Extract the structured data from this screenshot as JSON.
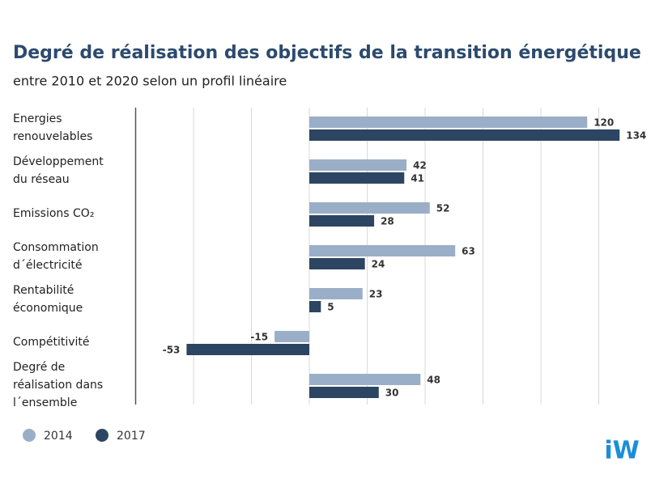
{
  "chart_data": {
    "type": "barh",
    "title": "Degré de réalisation des objectifs de la transition énergétique",
    "subtitle": "entre 2010 et 2020 selon un profil linéaire",
    "categories": [
      "Energies\nrenouvelables",
      "Développement\ndu réseau",
      "Emissions CO₂",
      "Consommation\nd´électricité",
      "Rentabilité\néconomique",
      "Compétitivité",
      "Degré de\nréalisation dans\nl´ensemble"
    ],
    "series": [
      {
        "name": "2014",
        "color": "#9aafc7",
        "values": [
          120,
          42,
          52,
          63,
          23,
          -15,
          48
        ]
      },
      {
        "name": "2017",
        "color": "#2c4562",
        "values": [
          134,
          41,
          28,
          24,
          5,
          -53,
          30
        ]
      }
    ],
    "xlim": [
      -75,
      140
    ],
    "xticks": [
      -75,
      -50,
      -25,
      0,
      25,
      50,
      75,
      100,
      125
    ],
    "grid": true,
    "legend": "bottom-left",
    "logo": "iW"
  }
}
